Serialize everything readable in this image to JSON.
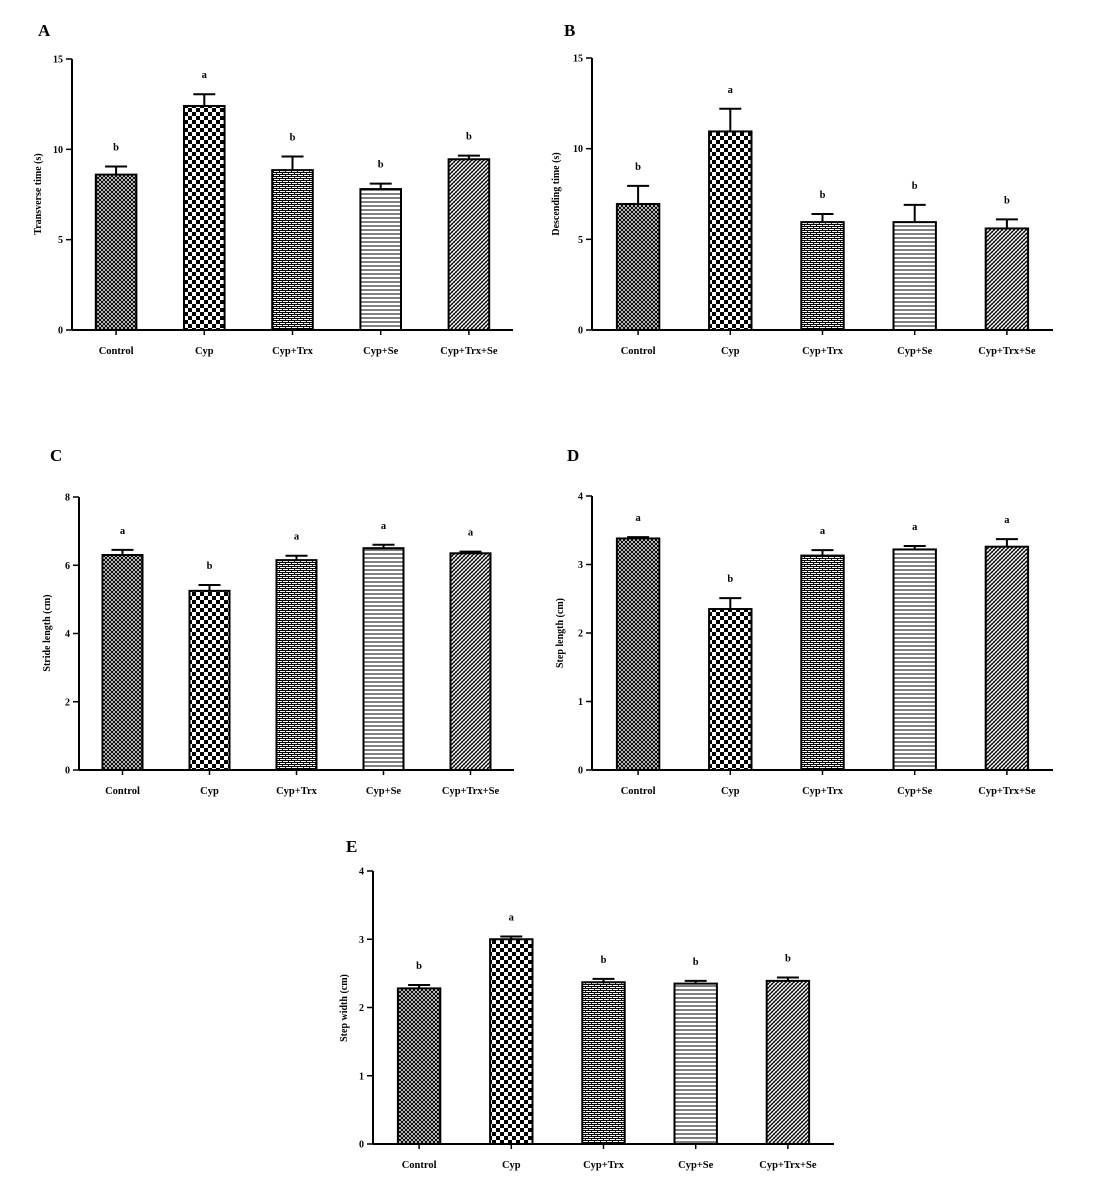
{
  "chart_data": [
    {
      "panel": "A",
      "type": "bar",
      "categories": [
        "Control",
        "Cyp",
        "Cyp+Trx",
        "Cyp+Se",
        "Cyp+Trx+Se"
      ],
      "values": [
        8.6,
        12.4,
        8.85,
        7.8,
        9.45
      ],
      "errors": [
        0.45,
        0.65,
        0.75,
        0.3,
        0.2
      ],
      "significance": [
        "b",
        "a",
        "b",
        "b",
        "b"
      ],
      "ylabel": "Transverse time (s)",
      "ylim": [
        0,
        15
      ],
      "yticks": [
        0,
        5,
        10,
        15
      ]
    },
    {
      "panel": "B",
      "type": "bar",
      "categories": [
        "Control",
        "Cyp",
        "Cyp+Trx",
        "Cyp+Se",
        "Cyp+Trx+Se"
      ],
      "values": [
        6.95,
        10.95,
        5.95,
        5.95,
        5.6
      ],
      "errors": [
        1.0,
        1.25,
        0.45,
        0.95,
        0.5
      ],
      "significance": [
        "b",
        "a",
        "b",
        "b",
        "b"
      ],
      "ylabel": "Descending time (s)",
      "ylim": [
        0,
        15
      ],
      "yticks": [
        0,
        5,
        10,
        15
      ]
    },
    {
      "panel": "C",
      "type": "bar",
      "categories": [
        "Control",
        "Cyp",
        "Cyp+Trx",
        "Cyp+Se",
        "Cyp+Trx+Se"
      ],
      "values": [
        6.3,
        5.25,
        6.15,
        6.5,
        6.35
      ],
      "errors": [
        0.15,
        0.17,
        0.13,
        0.1,
        0.05
      ],
      "significance": [
        "a",
        "b",
        "a",
        "a",
        "a"
      ],
      "ylabel": "Stride length (cm)",
      "ylim": [
        0,
        8
      ],
      "yticks": [
        0,
        2,
        4,
        6,
        8
      ]
    },
    {
      "panel": "D",
      "type": "bar",
      "categories": [
        "Control",
        "Cyp",
        "Cyp+Trx",
        "Cyp+Se",
        "Cyp+Trx+Se"
      ],
      "values": [
        3.38,
        2.35,
        3.13,
        3.22,
        3.26
      ],
      "errors": [
        0.02,
        0.16,
        0.08,
        0.05,
        0.11
      ],
      "significance": [
        "a",
        "b",
        "a",
        "a",
        "a"
      ],
      "ylabel": "Step length (cm)",
      "ylim": [
        0,
        4
      ],
      "yticks": [
        0,
        1,
        2,
        3,
        4
      ]
    },
    {
      "panel": "E",
      "type": "bar",
      "categories": [
        "Control",
        "Cyp",
        "Cyp+Trx",
        "Cyp+Se",
        "Cyp+Trx+Se"
      ],
      "values": [
        2.28,
        3.0,
        2.37,
        2.35,
        2.39
      ],
      "errors": [
        0.05,
        0.04,
        0.05,
        0.04,
        0.05
      ],
      "significance": [
        "b",
        "a",
        "b",
        "b",
        "b"
      ],
      "ylabel": "Step width (cm)",
      "ylim": [
        0,
        4
      ],
      "yticks": [
        0,
        1,
        2,
        3,
        4
      ]
    }
  ],
  "patterns": [
    "dense-crosshatch",
    "checkerboard",
    "brick",
    "horizontal-lines",
    "fine-diagonal"
  ],
  "colors": {
    "ink": "#000000",
    "background": "#ffffff"
  }
}
